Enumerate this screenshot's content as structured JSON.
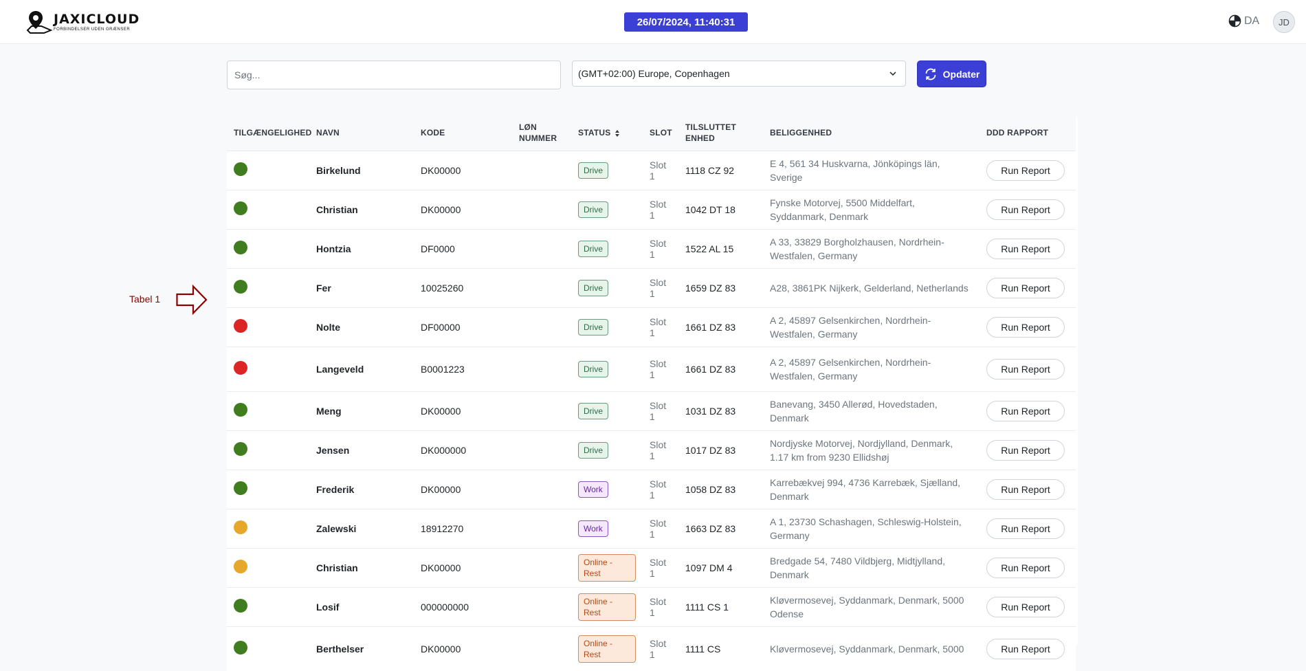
{
  "header": {
    "logo_name": "JAXICLOUD",
    "logo_tagline": "FORBINDELSER UDEN GRÆNSER",
    "datetime": "26/07/2024, 11:40:31",
    "language": "DA",
    "avatar_initials": "JD"
  },
  "toolbar": {
    "search_placeholder": "Søg...",
    "timezone": "(GMT+02:00) Europe, Copenhagen",
    "refresh_label": "Opdater"
  },
  "annotation": {
    "label": "Tabel 1"
  },
  "colors": {
    "accent": "#3c3fd6",
    "green": "#3f7d1f",
    "red": "#dc2626",
    "yellow": "#e6a82b",
    "annotation": "#8b0000"
  },
  "table": {
    "columns": [
      "Tilgængelighed",
      "Navn",
      "Kode",
      "Løn Nummer",
      "Status",
      "Slot",
      "Tilsluttet Enhed",
      "Beliggenhed",
      "DDD Rapport"
    ],
    "report_label": "Run Report",
    "rows": [
      {
        "availability": "green",
        "name": "Birkelund",
        "code": "DK00000",
        "salary": "",
        "status": "Drive",
        "status_type": "drive",
        "slot": "Slot 1",
        "unit": "1118 CZ 92",
        "location": "E 4, 561 34 Huskvarna, Jönköpings län, Sverige"
      },
      {
        "availability": "green",
        "name": "Christian",
        "code": "DK00000",
        "salary": "",
        "status": "Drive",
        "status_type": "drive",
        "slot": "Slot 1",
        "unit": "1042 DT 18",
        "location": "Fynske Motorvej, 5500 Middelfart, Syddanmark, Denmark"
      },
      {
        "availability": "green",
        "name": "Hontzia",
        "code": "DF0000",
        "salary": "",
        "status": "Drive",
        "status_type": "drive",
        "slot": "Slot 1",
        "unit": "1522 AL 15",
        "location": "A 33, 33829 Borgholzhausen, Nordrhein-Westfalen, Germany"
      },
      {
        "availability": "green",
        "name": "Fer",
        "code": "10025260",
        "salary": "",
        "status": "Drive",
        "status_type": "drive",
        "slot": "Slot 1",
        "unit": "1659 DZ 83",
        "location": "A28, 3861PK Nijkerk, Gelderland, Netherlands"
      },
      {
        "availability": "red",
        "name": "Nolte",
        "code": "DF00000",
        "salary": "",
        "status": "Drive",
        "status_type": "drive",
        "slot": "Slot 1",
        "unit": "1661 DZ 83",
        "location": "A 2, 45897 Gelsenkirchen, Nordrhein-Westfalen, Germany"
      },
      {
        "availability": "red",
        "name": "Langeveld",
        "code": "B0001223",
        "salary": "",
        "status": "Drive",
        "status_type": "drive",
        "slot": "Slot 1",
        "unit": "1661 DZ 83",
        "location": "A 2, 45897 Gelsenkirchen, Nordrhein-Westfalen, Germany"
      },
      {
        "availability": "green",
        "name": "Meng",
        "code": "DK00000",
        "salary": "",
        "status": "Drive",
        "status_type": "drive",
        "slot": "Slot 1",
        "unit": "1031 DZ 83",
        "location": "Banevang, 3450 Allerød, Hovedstaden, Denmark"
      },
      {
        "availability": "green",
        "name": "Jensen",
        "code": "DK000000",
        "salary": "",
        "status": "Drive",
        "status_type": "drive",
        "slot": "Slot 1",
        "unit": "1017 DZ 83",
        "location": "Nordjyske Motorvej, Nordjylland, Denmark, 1.17 km from 9230 Ellidshøj"
      },
      {
        "availability": "green",
        "name": "Frederik",
        "code": "DK00000",
        "salary": "",
        "status": "Work",
        "status_type": "work",
        "slot": "Slot 1",
        "unit": "1058 DZ 83",
        "location": "Karrebækvej 994, 4736 Karrebæk, Sjælland, Denmark"
      },
      {
        "availability": "yellow",
        "name": "Zalewski",
        "code": "18912270",
        "salary": "",
        "status": "Work",
        "status_type": "work",
        "slot": "Slot 1",
        "unit": "1663 DZ 83",
        "location": "A 1, 23730 Schashagen, Schleswig-Holstein, Germany"
      },
      {
        "availability": "yellow",
        "name": "Christian",
        "code": "DK00000",
        "salary": "",
        "status": "Online - Rest",
        "status_type": "rest",
        "slot": "Slot 1",
        "unit": "1097 DM 4",
        "location": "Bredgade 54, 7480 Vildbjerg, Midtjylland, Denmark"
      },
      {
        "availability": "green",
        "name": "Losif",
        "code": "000000000",
        "salary": "",
        "status": "Online - Rest",
        "status_type": "rest",
        "slot": "Slot 1",
        "unit": "1111 CS 1",
        "location": "Kløvermosevej, Syddanmark, Denmark, 5000 Odense"
      },
      {
        "availability": "green",
        "name": "Berthelser",
        "code": "DK00000",
        "salary": "",
        "status": "Online - Rest",
        "status_type": "rest",
        "slot": "Slot 1",
        "unit": "1111 CS",
        "location": "Kløvermosevej, Syddanmark, Denmark, 5000"
      }
    ]
  }
}
